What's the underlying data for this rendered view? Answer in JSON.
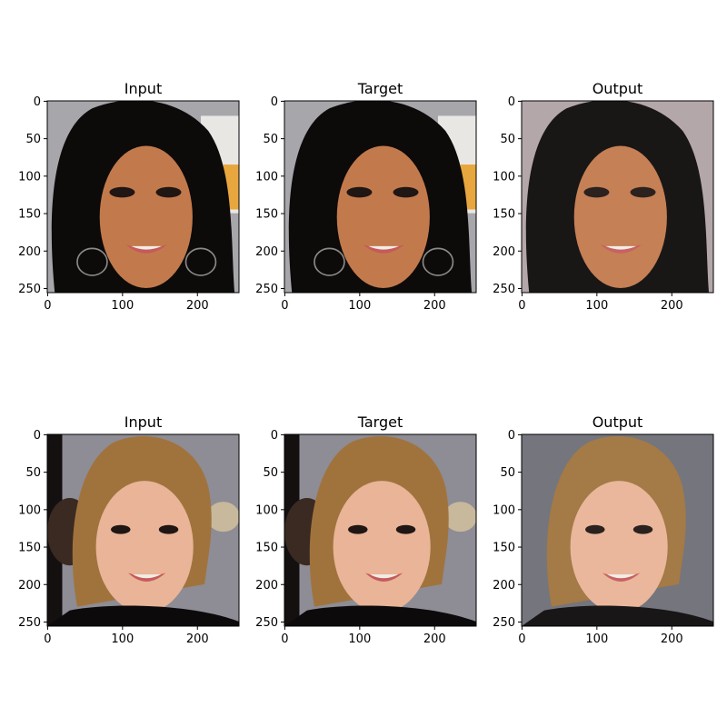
{
  "figure": {
    "panels": [
      {
        "title": "Input",
        "row": 0,
        "col": 0,
        "subject": "face-1",
        "variant": "input"
      },
      {
        "title": "Target",
        "row": 0,
        "col": 1,
        "subject": "face-1",
        "variant": "target"
      },
      {
        "title": "Output",
        "row": 0,
        "col": 2,
        "subject": "face-1",
        "variant": "output"
      },
      {
        "title": "Input",
        "row": 1,
        "col": 0,
        "subject": "face-2",
        "variant": "input"
      },
      {
        "title": "Target",
        "row": 1,
        "col": 1,
        "subject": "face-2",
        "variant": "target"
      },
      {
        "title": "Output",
        "row": 1,
        "col": 2,
        "subject": "face-2",
        "variant": "output"
      }
    ],
    "x_ticks": [
      0,
      100,
      200
    ],
    "y_ticks": [
      0,
      50,
      100,
      150,
      200,
      250
    ],
    "image_extent": [
      256,
      256
    ],
    "colors": {
      "face1_hair": "#0d0a0a",
      "face1_skin": "#c27a4c",
      "face1_bg": "#a7a6ab",
      "face1_accent": "#e7a73e",
      "face1_output_bg": "#b0a3a6",
      "face2_hair": "#a0733d",
      "face2_skin": "#e9b497",
      "face2_bg": "#8e8c94",
      "face2_dark": "#3a2a22",
      "face2_output_bg": "#6e6e76",
      "lips": "#c65a5a",
      "teeth": "#f2ece6",
      "eye": "#201614"
    }
  }
}
